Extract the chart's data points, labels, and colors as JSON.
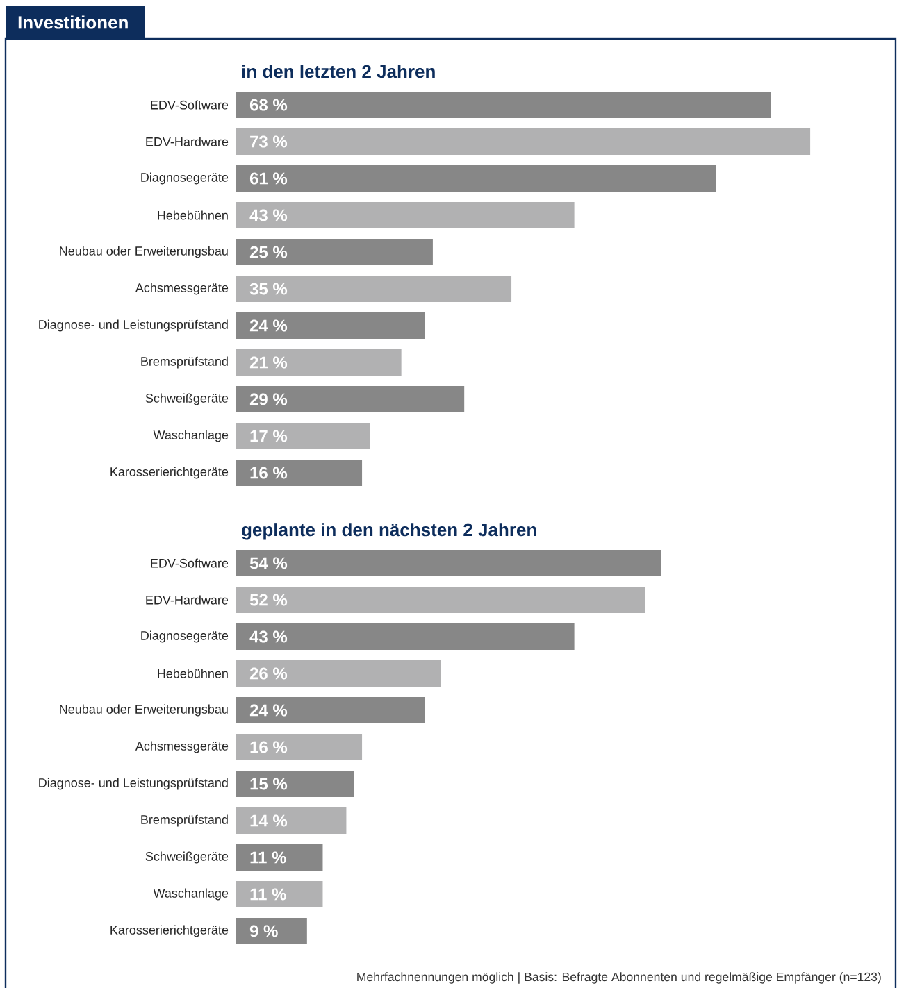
{
  "chart_data": [
    {
      "type": "bar",
      "orientation": "horizontal",
      "title": "Investitionen",
      "subtitle": "in den letzten 2 Jahren",
      "categories": [
        "EDV-Software",
        "EDV-Hardware",
        "Diagnosegeräte",
        "Hebebühnen",
        "Neubau oder Erweiterungsbau",
        "Achsmessgeräte",
        "Diagnose- und Leistungsprüfstand",
        "Bremsprüfstand",
        "Schweißgeräte",
        "Waschanlage",
        "Karosserierichtgeräte"
      ],
      "values": [
        68,
        73,
        61,
        43,
        25,
        35,
        24,
        21,
        29,
        17,
        16
      ],
      "value_labels": [
        "68 %",
        "73 %",
        "61 %",
        "43 %",
        "25 %",
        "35 %",
        "24 %",
        "21 %",
        "29 %",
        "17 %",
        "16 %"
      ],
      "colors": [
        "#878787",
        "#b1b1b2",
        "#878787",
        "#b1b1b2",
        "#878787",
        "#b1b1b2",
        "#878787",
        "#b1b1b2",
        "#878787",
        "#b1b1b2",
        "#878787"
      ]
    },
    {
      "type": "bar",
      "orientation": "horizontal",
      "title": "geplante in den nächsten 2 Jahren",
      "categories": [
        "EDV-Software",
        "EDV-Hardware",
        "Diagnosegeräte",
        "Hebebühnen",
        "Neubau oder Erweiterungsbau",
        "Achsmessgeräte",
        "Diagnose- und Leistungsprüfstand",
        "Bremsprüfstand",
        "Schweißgeräte",
        "Waschanlage",
        "Karosserierichtgeräte"
      ],
      "values": [
        54,
        52,
        43,
        26,
        24,
        16,
        15,
        14,
        11,
        11,
        9
      ],
      "value_labels": [
        "54 %",
        "52 %",
        "43 %",
        "26 %",
        "24 %",
        "16 %",
        "15 %",
        "14 %",
        "11 %",
        "11 %",
        "9 %"
      ],
      "colors": [
        "#878787",
        "#b1b1b2",
        "#878787",
        "#b1b1b2",
        "#878787",
        "#b1b1b2",
        "#878787",
        "#b1b1b2",
        "#878787",
        "#b1b1b2",
        "#878787"
      ],
      "annotations": [
        "Mehrfachnennungen möglich | Basis: Befragte Abonnenten und regelmäßige Empfänger (n=123)"
      ]
    }
  ]
}
